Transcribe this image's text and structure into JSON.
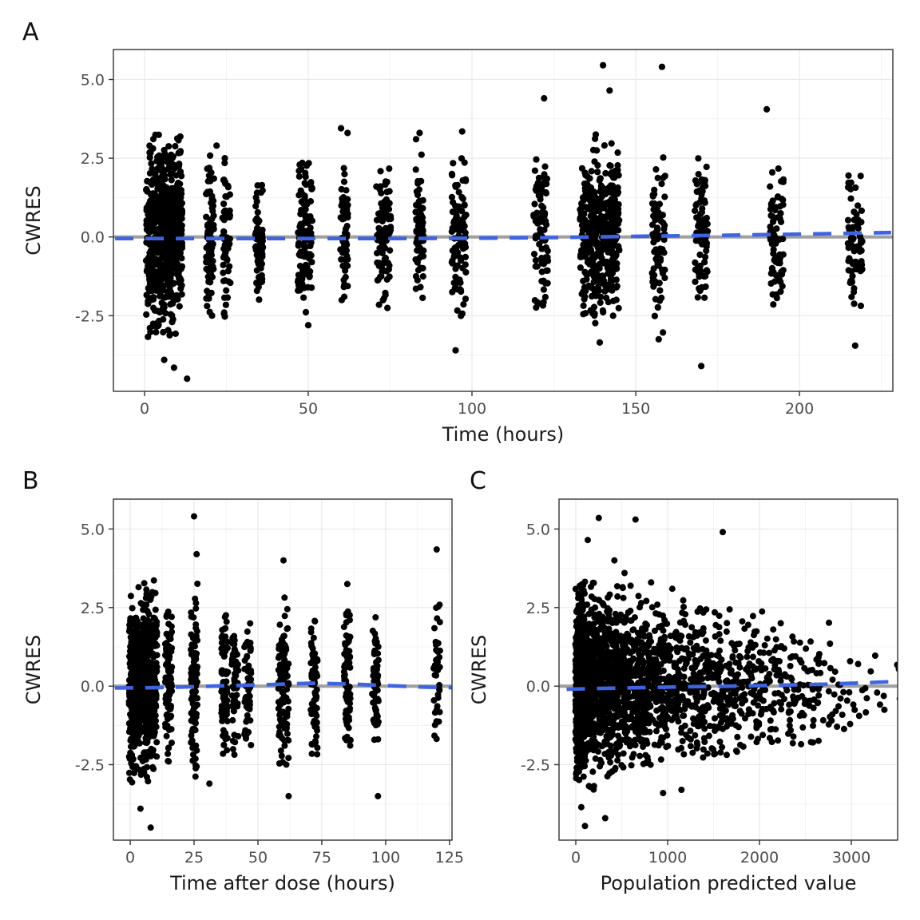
{
  "figure": {
    "description": "Three-panel CWRES residual diagnostic scatter plots",
    "background": "#ffffff"
  },
  "style": {
    "point_color": "#000000",
    "refline_color": "#a0a0a0",
    "smoother_color": "#3e64e0",
    "grid_major": "#e8e8e8",
    "grid_minor": "#f3f3f3",
    "panel_border": "#333333",
    "tick_color": "#333333",
    "tick_label_color": "#4d4d4d",
    "axis_title_color": "#1a1a1a"
  },
  "clusters_format": "[x_center, x_halfspread, n_points, y_mean, y_sd, y_min, y_max]",
  "chart_data": [
    {
      "type": "scatter",
      "panel_label": "A",
      "xlabel": "Time (hours)",
      "ylabel": "CWRES",
      "xlim": [
        -9.5,
        228.5
      ],
      "ylim": [
        -4.9,
        5.95
      ],
      "xticks": [
        0,
        50,
        100,
        150,
        200
      ],
      "xtick_labels": [
        "0",
        "50",
        "100",
        "150",
        "200"
      ],
      "yticks": [
        -2.5,
        0,
        2.5,
        5
      ],
      "ytick_labels": [
        "-2.5",
        "0.0",
        "2.5",
        "5.0"
      ],
      "grid": true,
      "refline": {
        "y": 0
      },
      "smoother": {
        "dashed": true,
        "points": [
          [
            -9,
            -0.05
          ],
          [
            25,
            -0.05
          ],
          [
            50,
            -0.05
          ],
          [
            75,
            -0.05
          ],
          [
            100,
            -0.04
          ],
          [
            125,
            -0.02
          ],
          [
            150,
            0.02
          ],
          [
            175,
            0.05
          ],
          [
            200,
            0.09
          ],
          [
            228,
            0.14
          ]
        ]
      },
      "clusters": [
        [
          6,
          5.5,
          620,
          0.05,
          1.4,
          -3.2,
          3.5
        ],
        [
          20,
          1.2,
          85,
          0,
          1.25,
          -2.6,
          2.7
        ],
        [
          25,
          1.2,
          60,
          0,
          1.25,
          -2.7,
          2.9
        ],
        [
          35,
          1.2,
          70,
          -0.1,
          1.05,
          -2.2,
          1.9
        ],
        [
          49,
          2.2,
          110,
          0,
          1.2,
          -2.4,
          2.6
        ],
        [
          61,
          1.2,
          55,
          0,
          1.15,
          -2.1,
          2.3
        ],
        [
          73,
          2.2,
          90,
          -0.05,
          1.15,
          -2.3,
          2.2
        ],
        [
          84,
          1.2,
          70,
          0,
          1.2,
          -2.4,
          3.3
        ],
        [
          96,
          2.2,
          100,
          0,
          1.25,
          -2.6,
          2.5
        ],
        [
          121,
          2.2,
          90,
          0,
          1.3,
          -2.3,
          2.6
        ],
        [
          139,
          6,
          430,
          0,
          1.3,
          -2.9,
          3.3
        ],
        [
          157,
          2,
          90,
          0,
          1.35,
          -3.2,
          2.6
        ],
        [
          170,
          2,
          80,
          0.05,
          1.2,
          -2.2,
          2.6
        ],
        [
          193,
          2.2,
          80,
          0,
          1.3,
          -2.9,
          2.5
        ],
        [
          217,
          2.2,
          70,
          0.1,
          1.2,
          -2.3,
          2.2
        ]
      ],
      "outliers": [
        [
          6,
          -3.9
        ],
        [
          9,
          -4.15
        ],
        [
          13,
          -4.5
        ],
        [
          22,
          2.9
        ],
        [
          50,
          -2.8
        ],
        [
          60,
          3.45
        ],
        [
          62,
          3.3
        ],
        [
          84,
          3.3
        ],
        [
          95,
          -3.6
        ],
        [
          97,
          3.35
        ],
        [
          122,
          4.4
        ],
        [
          139,
          -3.35
        ],
        [
          140,
          5.45
        ],
        [
          142,
          4.65
        ],
        [
          157,
          -3.25
        ],
        [
          158,
          5.4
        ],
        [
          170,
          -4.1
        ],
        [
          190,
          4.05
        ],
        [
          217,
          -3.45
        ]
      ]
    },
    {
      "type": "scatter",
      "panel_label": "B",
      "xlabel": "Time after dose (hours)",
      "ylabel": "CWRES",
      "xlim": [
        -6.6,
        126
      ],
      "ylim": [
        -4.9,
        5.95
      ],
      "xticks": [
        0,
        25,
        50,
        75,
        100,
        125
      ],
      "xtick_labels": [
        "0",
        "25",
        "50",
        "75",
        "100",
        "125"
      ],
      "yticks": [
        -2.5,
        0,
        2.5,
        5
      ],
      "ytick_labels": [
        "-2.5",
        "0.0",
        "2.5",
        "5.0"
      ],
      "grid": true,
      "refline": {
        "y": 0
      },
      "smoother": {
        "dashed": true,
        "points": [
          [
            -6,
            -0.06
          ],
          [
            10,
            -0.05
          ],
          [
            25,
            -0.02
          ],
          [
            40,
            0.02
          ],
          [
            55,
            0.05
          ],
          [
            70,
            0.09
          ],
          [
            85,
            0.07
          ],
          [
            100,
            0.02
          ],
          [
            115,
            -0.03
          ],
          [
            126,
            -0.05
          ]
        ]
      },
      "clusters": [
        [
          5,
          5.5,
          700,
          0.05,
          1.35,
          -3.3,
          3.4
        ],
        [
          15,
          1.3,
          90,
          0,
          1.2,
          -2.5,
          2.6
        ],
        [
          25,
          1.3,
          110,
          0,
          1.35,
          -2.9,
          3.3
        ],
        [
          37,
          1.3,
          90,
          0,
          1.2,
          -2.4,
          2.4
        ],
        [
          41,
          1.3,
          60,
          0,
          1.1,
          -2.2,
          2.2
        ],
        [
          46,
          1.3,
          60,
          0,
          1.1,
          -2.2,
          2.1
        ],
        [
          60,
          2,
          110,
          0,
          1.3,
          -3.0,
          3.5
        ],
        [
          72,
          1.3,
          70,
          0,
          1.2,
          -2.7,
          2.1
        ],
        [
          85,
          1.3,
          80,
          0,
          1.2,
          -2.3,
          2.5
        ],
        [
          96,
          1.3,
          60,
          0,
          1.15,
          -2.0,
          2.3
        ],
        [
          120,
          1.3,
          40,
          0.1,
          1.2,
          -1.7,
          2.6
        ]
      ],
      "outliers": [
        [
          4,
          -3.9
        ],
        [
          8,
          -4.5
        ],
        [
          25,
          5.4
        ],
        [
          26,
          4.2
        ],
        [
          31,
          -3.1
        ],
        [
          60,
          4.0
        ],
        [
          62,
          -3.5
        ],
        [
          85,
          3.25
        ],
        [
          97,
          -3.5
        ],
        [
          120,
          4.35
        ]
      ]
    },
    {
      "type": "scatter",
      "panel_label": "C",
      "xlabel": "Population predicted value",
      "ylabel": "CWRES",
      "xlim": [
        -183,
        3504
      ],
      "ylim": [
        -4.9,
        5.95
      ],
      "xticks": [
        0,
        1000,
        2000,
        3000
      ],
      "xtick_labels": [
        "0",
        "1000",
        "2000",
        "3000"
      ],
      "yticks": [
        -2.5,
        0,
        2.5,
        5
      ],
      "ytick_labels": [
        "-2.5",
        "0.0",
        "2.5",
        "5.0"
      ],
      "grid": true,
      "refline": {
        "y": 0
      },
      "smoother": {
        "dashed": true,
        "points": [
          [
            -100,
            -0.1
          ],
          [
            300,
            -0.07
          ],
          [
            700,
            -0.05
          ],
          [
            1200,
            -0.02
          ],
          [
            1700,
            0.0
          ],
          [
            2200,
            0.03
          ],
          [
            2700,
            0.06
          ],
          [
            3100,
            0.1
          ],
          [
            3500,
            0.15
          ]
        ]
      },
      "clusters": [
        [
          40,
          45,
          260,
          0.1,
          1.35,
          -3.2,
          3.3
        ],
        [
          100,
          100,
          450,
          0.1,
          1.35,
          -3.3,
          3.4
        ],
        [
          300,
          100,
          350,
          0.05,
          1.3,
          -2.9,
          3.3
        ],
        [
          500,
          100,
          250,
          0.05,
          1.3,
          -2.8,
          3.2
        ],
        [
          700,
          100,
          200,
          0,
          1.25,
          -2.7,
          3.0
        ],
        [
          900,
          100,
          160,
          0,
          1.25,
          -2.6,
          3.0
        ],
        [
          1100,
          100,
          130,
          0,
          1.2,
          -2.5,
          2.8
        ],
        [
          1300,
          100,
          110,
          0,
          1.2,
          -2.5,
          2.6
        ],
        [
          1500,
          100,
          90,
          0,
          1.2,
          -2.4,
          2.6
        ],
        [
          1700,
          100,
          70,
          0,
          1.15,
          -2.3,
          2.5
        ],
        [
          1900,
          100,
          60,
          0,
          1.15,
          -2.3,
          2.4
        ],
        [
          2100,
          100,
          50,
          0,
          1.1,
          -2.2,
          2.4
        ],
        [
          2300,
          100,
          45,
          0,
          1.1,
          -2.2,
          2.3
        ],
        [
          2500,
          100,
          35,
          0,
          1.05,
          -2.0,
          2.2
        ],
        [
          2700,
          100,
          25,
          0,
          1.0,
          -1.9,
          2.1
        ],
        [
          2900,
          100,
          15,
          0,
          0.95,
          -1.8,
          1.9
        ],
        [
          3100,
          100,
          8,
          0.1,
          0.9,
          -1.5,
          1.7
        ],
        [
          3300,
          100,
          6,
          0.2,
          0.8,
          -1.2,
          1.8
        ],
        [
          3500,
          80,
          4,
          0.3,
          0.7,
          -1.0,
          1.6
        ]
      ],
      "outliers": [
        [
          250,
          5.35
        ],
        [
          650,
          5.3
        ],
        [
          1600,
          4.9
        ],
        [
          130,
          4.65
        ],
        [
          420,
          4.0
        ],
        [
          530,
          3.6
        ],
        [
          820,
          3.3
        ],
        [
          1050,
          3.1
        ],
        [
          100,
          -4.45
        ],
        [
          320,
          -4.2
        ],
        [
          60,
          -3.85
        ],
        [
          950,
          -3.4
        ],
        [
          1150,
          -3.3
        ]
      ]
    }
  ]
}
